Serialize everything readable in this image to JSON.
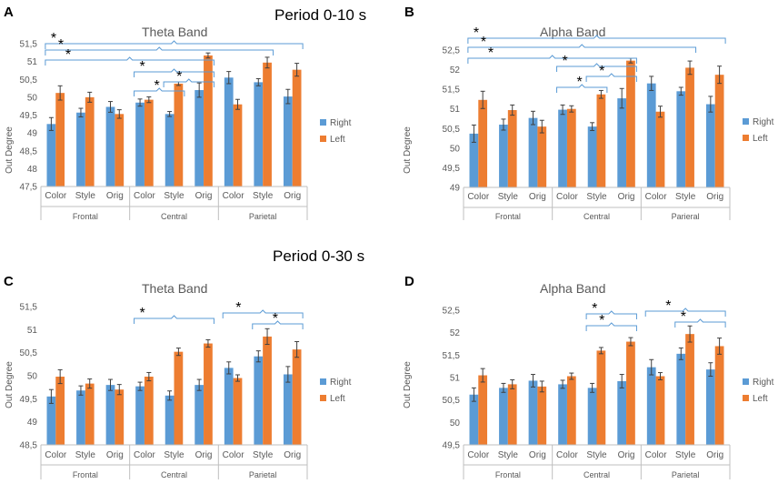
{
  "periods": [
    "Period 0-10 s",
    "Period 0-30 s"
  ],
  "colors": {
    "right": "#5B9BD5",
    "left": "#ED7D31",
    "bracket": "#5B9BD5",
    "axis": "#BFBFBF"
  },
  "legend": [
    "Right",
    "Left"
  ],
  "chart_data": [
    {
      "panel": "A",
      "type": "bar",
      "title": "Theta Band",
      "ylabel": "Out Degree",
      "ylim": [
        47.5,
        51.5
      ],
      "yticks": [
        "47,5",
        "48",
        "48,5",
        "49",
        "49,5",
        "50",
        "50,5",
        "51",
        "51,5"
      ],
      "categories": [
        "Color",
        "Style",
        "Orig",
        "Color",
        "Style",
        "Orig",
        "Color",
        "Style",
        "Orig"
      ],
      "groups": [
        "Frontal",
        "Central",
        "Parietal"
      ],
      "series": [
        {
          "name": "Right",
          "values": [
            49.25,
            49.57,
            49.73,
            49.85,
            49.53,
            50.2,
            50.55,
            50.42,
            50.02
          ],
          "errors": [
            0.18,
            0.12,
            0.15,
            0.1,
            0.07,
            0.2,
            0.17,
            0.1,
            0.2
          ]
        },
        {
          "name": "Left",
          "values": [
            50.12,
            50.0,
            49.53,
            49.93,
            50.38,
            51.17,
            49.8,
            50.97,
            50.77
          ],
          "errors": [
            0.2,
            0.14,
            0.12,
            0.08,
            0.05,
            0.07,
            0.14,
            0.15,
            0.18
          ]
        }
      ],
      "significance": [
        {
          "from": 0,
          "to": 8,
          "label": "*"
        },
        {
          "from": 0,
          "to": 7,
          "label": "*"
        },
        {
          "from": 0,
          "to": 5,
          "label": "*"
        },
        {
          "from": 3,
          "to": 5,
          "label": "*"
        },
        {
          "from": 4,
          "to": 5,
          "label": "*"
        },
        {
          "from": 3,
          "to": 4,
          "label": "*"
        }
      ]
    },
    {
      "panel": "B",
      "type": "bar",
      "title": "Alpha Band",
      "ylabel": "Out Degree",
      "ylim": [
        49,
        52.5
      ],
      "yticks": [
        "49",
        "49,5",
        "50",
        "50,5",
        "51",
        "51,5",
        "52",
        "52,5"
      ],
      "categories": [
        "Color",
        "Style",
        "Orig",
        "Color",
        "Style",
        "Orig",
        "Color",
        "Style",
        "Orig"
      ],
      "groups": [
        "Frontal",
        "Central",
        "Parieral"
      ],
      "series": [
        {
          "name": "Right",
          "values": [
            50.37,
            50.6,
            50.77,
            50.98,
            50.55,
            51.27,
            51.65,
            51.45,
            51.12
          ],
          "errors": [
            0.22,
            0.14,
            0.17,
            0.12,
            0.1,
            0.25,
            0.18,
            0.1,
            0.2
          ]
        },
        {
          "name": "Left",
          "values": [
            51.23,
            50.97,
            50.55,
            51.0,
            51.37,
            52.23,
            50.93,
            52.05,
            51.87
          ],
          "errors": [
            0.22,
            0.13,
            0.16,
            0.08,
            0.1,
            0.06,
            0.14,
            0.17,
            0.22
          ]
        }
      ],
      "significance": [
        {
          "from": 0,
          "to": 8,
          "label": "*"
        },
        {
          "from": 0,
          "to": 7,
          "label": "*"
        },
        {
          "from": 0,
          "to": 5,
          "label": "*"
        },
        {
          "from": 3,
          "to": 5,
          "label": "*"
        },
        {
          "from": 4,
          "to": 5,
          "label": "*"
        },
        {
          "from": 3,
          "to": 4,
          "label": "*"
        }
      ]
    },
    {
      "panel": "C",
      "type": "bar",
      "title": "Theta Band",
      "ylabel": "Out Degree",
      "ylim": [
        48.5,
        51.5
      ],
      "yticks": [
        "48,5",
        "49",
        "49,5",
        "50",
        "50,5",
        "51",
        "51,5"
      ],
      "categories": [
        "Color",
        "Style",
        "Orig",
        "Color",
        "Style",
        "Orig",
        "Color",
        "Style",
        "Orig"
      ],
      "groups": [
        "Frontal",
        "Central",
        "Parietal"
      ],
      "series": [
        {
          "name": "Right",
          "values": [
            49.55,
            49.68,
            49.8,
            49.77,
            49.57,
            49.8,
            50.17,
            50.42,
            50.03
          ],
          "errors": [
            0.15,
            0.1,
            0.12,
            0.09,
            0.1,
            0.12,
            0.13,
            0.12,
            0.17
          ]
        },
        {
          "name": "Left",
          "values": [
            49.98,
            49.83,
            49.7,
            49.98,
            50.52,
            50.7,
            49.95,
            50.85,
            50.57
          ],
          "errors": [
            0.15,
            0.1,
            0.11,
            0.09,
            0.08,
            0.08,
            0.07,
            0.17,
            0.17
          ]
        }
      ],
      "significance": [
        {
          "from": 3,
          "to": 5,
          "label": "*"
        },
        {
          "from": 6,
          "to": 8,
          "label": "*"
        },
        {
          "from": 7,
          "to": 8,
          "label": "*"
        }
      ]
    },
    {
      "panel": "D",
      "type": "bar",
      "title": "Alpha Band",
      "ylabel": "Out Degree",
      "ylim": [
        49.5,
        52.5
      ],
      "yticks": [
        "49,5",
        "50",
        "50,5",
        "51",
        "51,5",
        "52",
        "52,5"
      ],
      "categories": [
        "Color",
        "Style",
        "Orig",
        "Color",
        "Style",
        "Orig",
        "Color",
        "Style",
        "Orig"
      ],
      "groups": [
        "Frontal",
        "Central",
        "Parietal"
      ],
      "series": [
        {
          "name": "Right",
          "values": [
            50.62,
            50.77,
            50.93,
            50.85,
            50.77,
            50.92,
            51.23,
            51.53,
            51.18
          ],
          "errors": [
            0.15,
            0.1,
            0.14,
            0.09,
            0.1,
            0.15,
            0.17,
            0.13,
            0.15
          ]
        },
        {
          "name": "Left",
          "values": [
            51.05,
            50.85,
            50.8,
            51.03,
            51.6,
            51.8,
            51.03,
            51.97,
            51.7
          ],
          "errors": [
            0.15,
            0.1,
            0.12,
            0.07,
            0.07,
            0.09,
            0.08,
            0.18,
            0.18
          ]
        }
      ],
      "significance": [
        {
          "from": 4,
          "to": 5,
          "label": "*"
        },
        {
          "from": 4,
          "to": 5,
          "label": "*"
        },
        {
          "from": 6,
          "to": 8,
          "label": "*"
        },
        {
          "from": 7,
          "to": 8,
          "label": "*"
        }
      ]
    }
  ]
}
